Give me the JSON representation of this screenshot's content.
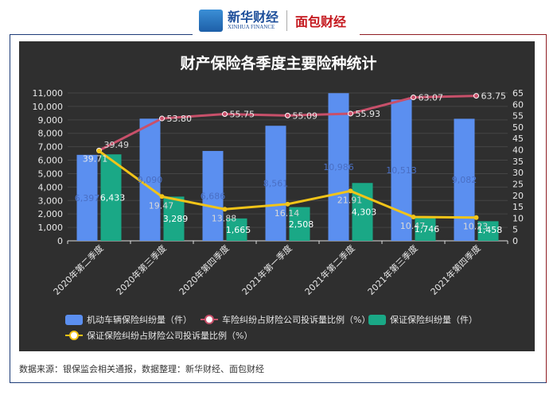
{
  "header": {
    "logo1_cn": "新华财经",
    "logo1_en": "XINHUA FINANCE",
    "logo2": "面包财经"
  },
  "source_note": "数据来源：银保监会相关通报，数据整理：新华财经、面包财经",
  "chart_data": {
    "type": "bar",
    "title": "财产保险各季度主要险种统计",
    "categories": [
      "2020年第二季度",
      "2020年第三季度",
      "2020年第四季度",
      "2021年第一季度",
      "2021年第二季度",
      "2021年第三季度",
      "2021年第四季度"
    ],
    "y_left": {
      "range": [
        0,
        11000
      ],
      "ticks": [
        "0",
        "1,000",
        "2,000",
        "3,000",
        "4,000",
        "5,000",
        "6,000",
        "7,000",
        "8,000",
        "9,000",
        "10,000",
        "11,000"
      ]
    },
    "y_right": {
      "range": [
        0,
        65
      ],
      "ticks": [
        "0",
        "5",
        "10",
        "15",
        "20",
        "25",
        "30",
        "35",
        "40",
        "45",
        "50",
        "55",
        "60",
        "65"
      ]
    },
    "grid": true,
    "legend_position": "bottom",
    "series": [
      {
        "name": "机动车辆保险纠纷量（件）",
        "type": "bar",
        "axis": "left",
        "color": "#5b8ff0",
        "values": [
          6397,
          9090,
          6686,
          8561,
          10986,
          10513,
          9082
        ],
        "labels": [
          "6,397",
          "9,090",
          "6,686",
          "8,561",
          "10,986",
          "10,513",
          "9,082"
        ]
      },
      {
        "name": "车险纠纷占财险公司投诉量比例（%）",
        "type": "line",
        "axis": "right",
        "color": "#c8506a",
        "values": [
          39.71,
          53.8,
          55.75,
          55.09,
          55.93,
          63.07,
          63.75
        ],
        "labels": [
          "39.71",
          "53.80",
          "55.75",
          "55.09",
          "55.93",
          "63.07",
          "63.75"
        ]
      },
      {
        "name": "保证保险纠纷量（件）",
        "type": "bar",
        "axis": "left",
        "color": "#1aa886",
        "values": [
          6433,
          3289,
          1665,
          2508,
          4303,
          1746,
          1458
        ],
        "labels": [
          "6,433",
          "3,289",
          "1,665",
          "2,508",
          "4,303",
          "1,746",
          "1,458"
        ]
      },
      {
        "name": "保证保险纠纷占财险公司投诉量比例（%）",
        "type": "line",
        "axis": "right",
        "color": "#f2c418",
        "values": [
          39.49,
          19.47,
          13.88,
          16.14,
          21.91,
          10.47,
          10.23
        ],
        "labels": [
          "39.49",
          "19.47",
          "13.88",
          "16.14",
          "21.91",
          "10.47",
          "10.23"
        ]
      }
    ]
  }
}
